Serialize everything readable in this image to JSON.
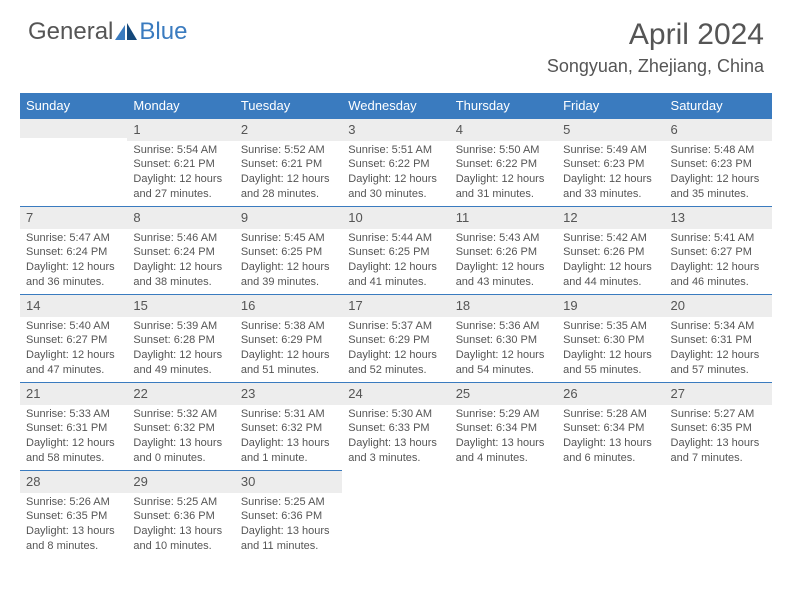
{
  "logo": {
    "text1": "General",
    "text2": "Blue"
  },
  "title": "April 2024",
  "location": "Songyuan, Zhejiang, China",
  "colors": {
    "header_bg": "#3a7bbf",
    "header_text": "#ffffff",
    "daynum_bg": "#ededed",
    "text": "#555555",
    "rule": "#3a7bbf",
    "logo_blue": "#3a7bbf"
  },
  "typography": {
    "title_fontsize": 30,
    "location_fontsize": 18,
    "dayhead_fontsize": 13,
    "daynum_fontsize": 13,
    "body_fontsize": 11
  },
  "weekdays": [
    "Sunday",
    "Monday",
    "Tuesday",
    "Wednesday",
    "Thursday",
    "Friday",
    "Saturday"
  ],
  "leading_blanks": 1,
  "days": [
    {
      "n": "1",
      "sunrise": "5:54 AM",
      "sunset": "6:21 PM",
      "daylight": "12 hours and 27 minutes."
    },
    {
      "n": "2",
      "sunrise": "5:52 AM",
      "sunset": "6:21 PM",
      "daylight": "12 hours and 28 minutes."
    },
    {
      "n": "3",
      "sunrise": "5:51 AM",
      "sunset": "6:22 PM",
      "daylight": "12 hours and 30 minutes."
    },
    {
      "n": "4",
      "sunrise": "5:50 AM",
      "sunset": "6:22 PM",
      "daylight": "12 hours and 31 minutes."
    },
    {
      "n": "5",
      "sunrise": "5:49 AM",
      "sunset": "6:23 PM",
      "daylight": "12 hours and 33 minutes."
    },
    {
      "n": "6",
      "sunrise": "5:48 AM",
      "sunset": "6:23 PM",
      "daylight": "12 hours and 35 minutes."
    },
    {
      "n": "7",
      "sunrise": "5:47 AM",
      "sunset": "6:24 PM",
      "daylight": "12 hours and 36 minutes."
    },
    {
      "n": "8",
      "sunrise": "5:46 AM",
      "sunset": "6:24 PM",
      "daylight": "12 hours and 38 minutes."
    },
    {
      "n": "9",
      "sunrise": "5:45 AM",
      "sunset": "6:25 PM",
      "daylight": "12 hours and 39 minutes."
    },
    {
      "n": "10",
      "sunrise": "5:44 AM",
      "sunset": "6:25 PM",
      "daylight": "12 hours and 41 minutes."
    },
    {
      "n": "11",
      "sunrise": "5:43 AM",
      "sunset": "6:26 PM",
      "daylight": "12 hours and 43 minutes."
    },
    {
      "n": "12",
      "sunrise": "5:42 AM",
      "sunset": "6:26 PM",
      "daylight": "12 hours and 44 minutes."
    },
    {
      "n": "13",
      "sunrise": "5:41 AM",
      "sunset": "6:27 PM",
      "daylight": "12 hours and 46 minutes."
    },
    {
      "n": "14",
      "sunrise": "5:40 AM",
      "sunset": "6:27 PM",
      "daylight": "12 hours and 47 minutes."
    },
    {
      "n": "15",
      "sunrise": "5:39 AM",
      "sunset": "6:28 PM",
      "daylight": "12 hours and 49 minutes."
    },
    {
      "n": "16",
      "sunrise": "5:38 AM",
      "sunset": "6:29 PM",
      "daylight": "12 hours and 51 minutes."
    },
    {
      "n": "17",
      "sunrise": "5:37 AM",
      "sunset": "6:29 PM",
      "daylight": "12 hours and 52 minutes."
    },
    {
      "n": "18",
      "sunrise": "5:36 AM",
      "sunset": "6:30 PM",
      "daylight": "12 hours and 54 minutes."
    },
    {
      "n": "19",
      "sunrise": "5:35 AM",
      "sunset": "6:30 PM",
      "daylight": "12 hours and 55 minutes."
    },
    {
      "n": "20",
      "sunrise": "5:34 AM",
      "sunset": "6:31 PM",
      "daylight": "12 hours and 57 minutes."
    },
    {
      "n": "21",
      "sunrise": "5:33 AM",
      "sunset": "6:31 PM",
      "daylight": "12 hours and 58 minutes."
    },
    {
      "n": "22",
      "sunrise": "5:32 AM",
      "sunset": "6:32 PM",
      "daylight": "13 hours and 0 minutes."
    },
    {
      "n": "23",
      "sunrise": "5:31 AM",
      "sunset": "6:32 PM",
      "daylight": "13 hours and 1 minute."
    },
    {
      "n": "24",
      "sunrise": "5:30 AM",
      "sunset": "6:33 PM",
      "daylight": "13 hours and 3 minutes."
    },
    {
      "n": "25",
      "sunrise": "5:29 AM",
      "sunset": "6:34 PM",
      "daylight": "13 hours and 4 minutes."
    },
    {
      "n": "26",
      "sunrise": "5:28 AM",
      "sunset": "6:34 PM",
      "daylight": "13 hours and 6 minutes."
    },
    {
      "n": "27",
      "sunrise": "5:27 AM",
      "sunset": "6:35 PM",
      "daylight": "13 hours and 7 minutes."
    },
    {
      "n": "28",
      "sunrise": "5:26 AM",
      "sunset": "6:35 PM",
      "daylight": "13 hours and 8 minutes."
    },
    {
      "n": "29",
      "sunrise": "5:25 AM",
      "sunset": "6:36 PM",
      "daylight": "13 hours and 10 minutes."
    },
    {
      "n": "30",
      "sunrise": "5:25 AM",
      "sunset": "6:36 PM",
      "daylight": "13 hours and 11 minutes."
    }
  ],
  "labels": {
    "sunrise": "Sunrise:",
    "sunset": "Sunset:",
    "daylight": "Daylight:"
  }
}
